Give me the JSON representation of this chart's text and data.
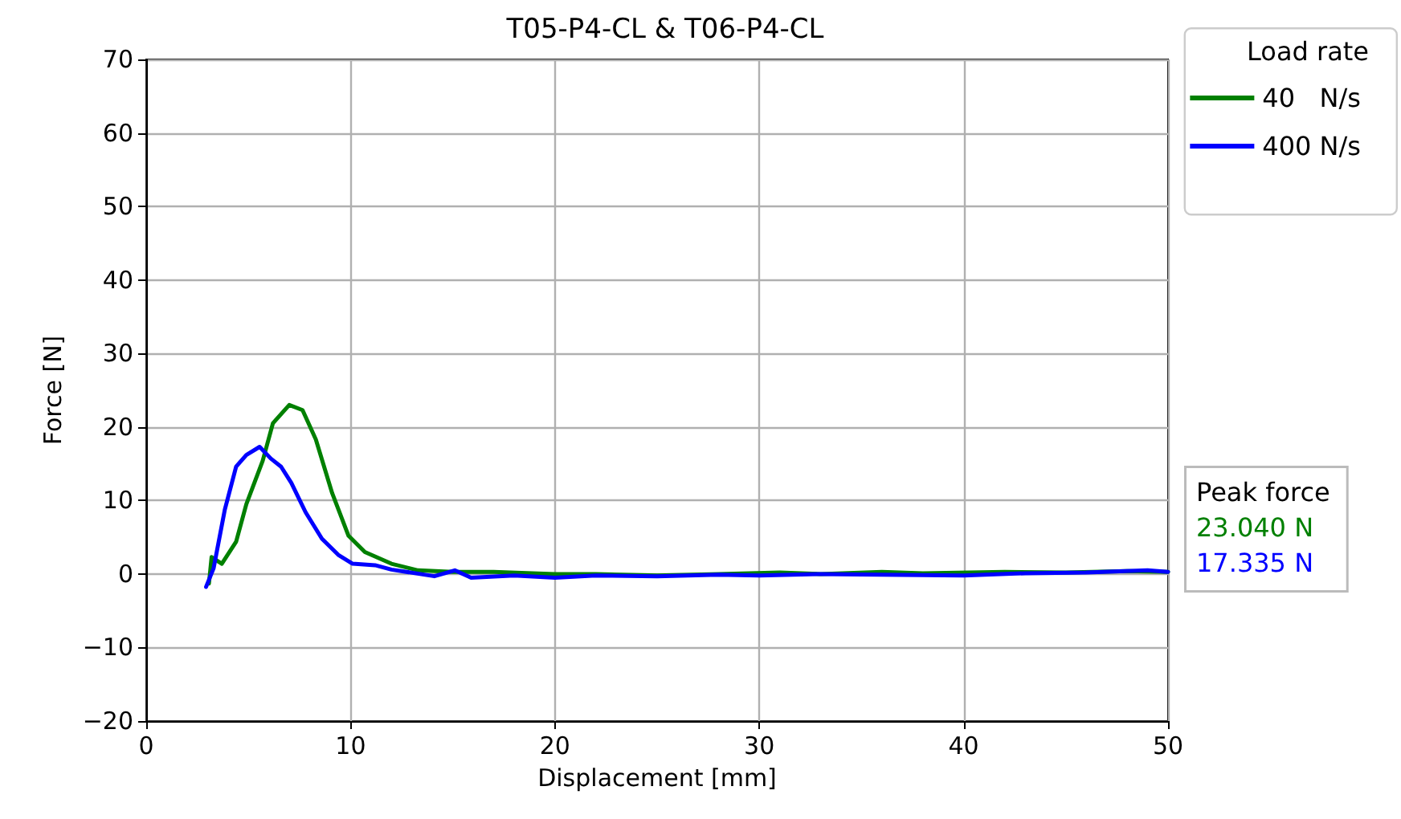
{
  "chart_data": {
    "type": "line",
    "title": "T05-P4-CL & T06-P4-CL",
    "xlabel": "Displacement [mm]",
    "ylabel": "Force [N]",
    "legend_title": "Load rate",
    "legend": "top right",
    "grid": true,
    "line_style": "solid",
    "marker": "none",
    "xlim": [
      0,
      50
    ],
    "xticks": [
      0,
      10,
      20,
      30,
      40,
      50
    ],
    "ylim": [
      -20,
      70
    ],
    "yticks": [
      -20,
      -10,
      0,
      10,
      20,
      30,
      40,
      50,
      60,
      70
    ],
    "annotations": [
      "Peak force",
      "23.040 N",
      "17.335 N"
    ],
    "series": [
      {
        "name": "40   N/s",
        "color": "#008000",
        "x": [
          3.07,
          3.2,
          3.7,
          4.4,
          4.9,
          5.7,
          6.2,
          7.0,
          7.65,
          8.3,
          9.1,
          9.9,
          10.7,
          12.0,
          13.3,
          15,
          17,
          20,
          22,
          25,
          28,
          31,
          33,
          36,
          38,
          42,
          45,
          48,
          50
        ],
        "values": [
          -1.3,
          2.3,
          1.4,
          4.4,
          9.5,
          15.4,
          20.5,
          23.0,
          22.3,
          18.3,
          11,
          5.2,
          3.0,
          1.4,
          0.5,
          0.3,
          0.3,
          0,
          0,
          -0.2,
          0,
          0.2,
          0,
          0.3,
          0.1,
          0.3,
          0.2,
          0.4,
          0.3
        ]
      },
      {
        "name": "400 N/s",
        "color": "#0000ff",
        "x": [
          2.93,
          3.3,
          3.85,
          4.4,
          4.9,
          5.55,
          6.1,
          6.6,
          7.1,
          7.8,
          8.6,
          9.4,
          10.1,
          11.2,
          12.0,
          14.1,
          15.1,
          15.9,
          18,
          20,
          22,
          25,
          28,
          30,
          33,
          36,
          40,
          43,
          46,
          49,
          50
        ],
        "values": [
          -1.75,
          0.8,
          8.8,
          14.6,
          16.2,
          17.3,
          15.7,
          14.6,
          12.4,
          8.4,
          4.8,
          2.6,
          1.4,
          1.2,
          0.6,
          -0.3,
          0.5,
          -0.5,
          -0.2,
          -0.5,
          -0.2,
          -0.3,
          -0.1,
          -0.2,
          0,
          -0.1,
          -0.2,
          0.1,
          0.2,
          0.5,
          0.3
        ]
      }
    ]
  }
}
